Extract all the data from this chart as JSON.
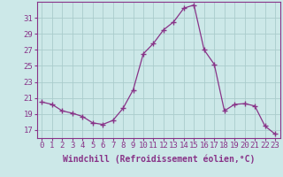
{
  "hours": [
    0,
    1,
    2,
    3,
    4,
    5,
    6,
    7,
    8,
    9,
    10,
    11,
    12,
    13,
    14,
    15,
    16,
    17,
    18,
    19,
    20,
    21,
    22,
    23
  ],
  "values": [
    20.5,
    20.2,
    19.4,
    19.1,
    18.7,
    17.9,
    17.7,
    18.2,
    19.7,
    22.0,
    26.5,
    27.8,
    29.5,
    30.5,
    32.2,
    32.6,
    27.0,
    25.2,
    19.4,
    20.2,
    20.3,
    20.0,
    17.5,
    16.5
  ],
  "line_color": "#883388",
  "marker": "+",
  "marker_size": 4,
  "bg_color": "#cce8e8",
  "grid_color": "#aacccc",
  "ylabel_ticks": [
    17,
    19,
    21,
    23,
    25,
    27,
    29,
    31
  ],
  "xlabel": "Windchill (Refroidissement éolien,°C)",
  "xlabel_fontsize": 7,
  "tick_fontsize": 6.5,
  "ylim": [
    16.0,
    33.0
  ],
  "xlim": [
    -0.5,
    23.5
  ],
  "xtick_labels": [
    "0",
    "1",
    "2",
    "3",
    "4",
    "5",
    "6",
    "7",
    "8",
    "9",
    "10",
    "11",
    "12",
    "13",
    "14",
    "15",
    "16",
    "17",
    "18",
    "19",
    "20",
    "21",
    "22",
    "23"
  ],
  "spine_color": "#883388",
  "axis_color": "#883388"
}
